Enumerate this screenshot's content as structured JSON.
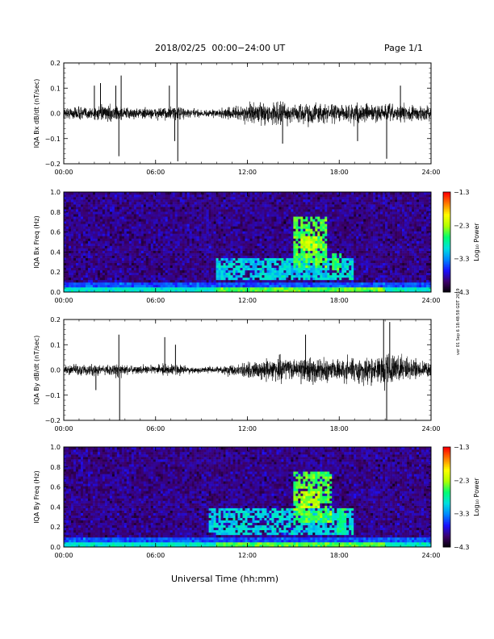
{
  "header": {
    "title": "2018/02/25  00:00−24:00 UT",
    "page": "Page 1/1"
  },
  "side_note": "ver 01 Sep 6 18:48:58 GDT 2019",
  "xlabel": "Universal Time (hh:mm)",
  "colors": {
    "trace": "#000000",
    "colormap": [
      "#000000",
      "#3c0068",
      "#1a10ff",
      "#0088ff",
      "#00e0e0",
      "#00ff70",
      "#b0ff00",
      "#ffff00",
      "#ff8000",
      "#ff0000"
    ]
  },
  "chart_data": [
    {
      "type": "line",
      "ylabel": "IQA Bx dB/dt (nT/sec)",
      "xlim": [
        0,
        24
      ],
      "ylim": [
        -0.2,
        0.2
      ],
      "xticks": [
        "00:00",
        "06:00",
        "12:00",
        "18:00",
        "24:00"
      ],
      "yticks": [
        "−0.2",
        "−0.1",
        "0.0",
        "0.1",
        "0.2"
      ],
      "envelope": {
        "hours": [
          0,
          0.5,
          1,
          1.5,
          2,
          2.5,
          3,
          3.5,
          4,
          4.5,
          5,
          5.5,
          6,
          6.5,
          7,
          7.5,
          8,
          8.5,
          9,
          9.5,
          10,
          10.5,
          11,
          11.5,
          12,
          12.5,
          13,
          13.5,
          14,
          14.5,
          15,
          15.5,
          16,
          16.5,
          17,
          17.5,
          18,
          18.5,
          19,
          19.5,
          20,
          20.5,
          21,
          21.5,
          22,
          22.5,
          23,
          23.5,
          24
        ],
        "amplitude": [
          0.03,
          0.035,
          0.04,
          0.035,
          0.04,
          0.04,
          0.045,
          0.04,
          0.035,
          0.03,
          0.03,
          0.03,
          0.03,
          0.035,
          0.035,
          0.04,
          0.03,
          0.025,
          0.02,
          0.02,
          0.025,
          0.03,
          0.035,
          0.04,
          0.05,
          0.055,
          0.06,
          0.06,
          0.065,
          0.06,
          0.055,
          0.055,
          0.06,
          0.06,
          0.055,
          0.05,
          0.05,
          0.05,
          0.055,
          0.055,
          0.05,
          0.05,
          0.055,
          0.05,
          0.05,
          0.045,
          0.045,
          0.04,
          0.04
        ]
      },
      "spikes": [
        {
          "hour": 2.0,
          "value": 0.11
        },
        {
          "hour": 2.4,
          "value": 0.12
        },
        {
          "hour": 3.4,
          "value": 0.11
        },
        {
          "hour": 3.75,
          "value": 0.15
        },
        {
          "hour": 3.6,
          "value": -0.17
        },
        {
          "hour": 6.9,
          "value": 0.11
        },
        {
          "hour": 7.25,
          "value": -0.11
        },
        {
          "hour": 7.4,
          "value": 0.2
        },
        {
          "hour": 7.45,
          "value": -0.19
        },
        {
          "hour": 14.3,
          "value": -0.12
        },
        {
          "hour": 19.2,
          "value": -0.11
        },
        {
          "hour": 21.1,
          "value": -0.18
        },
        {
          "hour": 22.0,
          "value": 0.11
        }
      ]
    },
    {
      "type": "heatmap",
      "ylabel": "IQA Bx Freq (Hz)",
      "xlim": [
        0,
        24
      ],
      "ylim": [
        0,
        1.0
      ],
      "xticks": [
        "00:00",
        "06:00",
        "12:00",
        "18:00",
        "24:00"
      ],
      "yticks": [
        "0.0",
        "0.2",
        "0.4",
        "0.6",
        "0.8",
        "1.0"
      ],
      "colorbar": {
        "label": "Log₁₀ Power",
        "range": [
          -4.3,
          -1.3
        ],
        "ticks": [
          "−1.3",
          "−2.3",
          "−3.3",
          "−4.3"
        ]
      },
      "features": [
        {
          "t0": 15.0,
          "t1": 17.2,
          "f0": 0.25,
          "f1": 0.75,
          "level": -2.5
        },
        {
          "t0": 15.5,
          "t1": 16.5,
          "f0": 0.42,
          "f1": 0.55,
          "level": -2.2
        },
        {
          "t0": 17.5,
          "t1": 18.1,
          "f0": 0.2,
          "f1": 0.4,
          "level": -2.6
        },
        {
          "t0": 10.0,
          "t1": 19.0,
          "f0": 0.12,
          "f1": 0.35,
          "level": -3.0
        }
      ]
    },
    {
      "type": "line",
      "ylabel": "IQA By dB/dt (nT/sec)",
      "xlim": [
        0,
        24
      ],
      "ylim": [
        -0.2,
        0.2
      ],
      "xticks": [
        "00:00",
        "06:00",
        "12:00",
        "18:00",
        "24:00"
      ],
      "yticks": [
        "−0.2",
        "−0.1",
        "0.0",
        "0.1",
        "0.2"
      ],
      "envelope": {
        "hours": [
          0,
          0.5,
          1,
          1.5,
          2,
          2.5,
          3,
          3.5,
          4,
          4.5,
          5,
          5.5,
          6,
          6.5,
          7,
          7.5,
          8,
          8.5,
          9,
          9.5,
          10,
          10.5,
          11,
          11.5,
          12,
          12.5,
          13,
          13.5,
          14,
          14.5,
          15,
          15.5,
          16,
          16.5,
          17,
          17.5,
          18,
          18.5,
          19,
          19.5,
          20,
          20.5,
          21,
          21.5,
          22,
          22.5,
          23,
          23.5,
          24
        ],
        "amplitude": [
          0.025,
          0.03,
          0.03,
          0.035,
          0.035,
          0.03,
          0.035,
          0.04,
          0.03,
          0.03,
          0.025,
          0.025,
          0.025,
          0.03,
          0.03,
          0.03,
          0.02,
          0.02,
          0.018,
          0.018,
          0.02,
          0.025,
          0.03,
          0.035,
          0.045,
          0.05,
          0.055,
          0.06,
          0.07,
          0.065,
          0.07,
          0.065,
          0.07,
          0.07,
          0.065,
          0.06,
          0.06,
          0.065,
          0.07,
          0.07,
          0.075,
          0.08,
          0.1,
          0.09,
          0.07,
          0.06,
          0.055,
          0.05,
          0.045
        ]
      },
      "spikes": [
        {
          "hour": 2.1,
          "value": -0.08
        },
        {
          "hour": 3.6,
          "value": 0.14
        },
        {
          "hour": 3.65,
          "value": -0.2
        },
        {
          "hour": 6.6,
          "value": 0.13
        },
        {
          "hour": 7.3,
          "value": 0.1
        },
        {
          "hour": 15.8,
          "value": 0.14
        },
        {
          "hour": 20.9,
          "value": 0.2
        },
        {
          "hour": 21.1,
          "value": -0.2
        },
        {
          "hour": 21.3,
          "value": 0.19
        }
      ]
    },
    {
      "type": "heatmap",
      "ylabel": "IQA By Freq (Hz)",
      "xlim": [
        0,
        24
      ],
      "ylim": [
        0,
        1.0
      ],
      "xticks": [
        "00:00",
        "06:00",
        "12:00",
        "18:00",
        "24:00"
      ],
      "yticks": [
        "0.0",
        "0.2",
        "0.4",
        "0.6",
        "0.8",
        "1.0"
      ],
      "colorbar": {
        "label": "Log₁₀ Power",
        "range": [
          -4.3,
          -1.3
        ],
        "ticks": [
          "−1.3",
          "−2.3",
          "−3.3",
          "−4.3"
        ]
      },
      "features": [
        {
          "t0": 15.0,
          "t1": 17.5,
          "f0": 0.25,
          "f1": 0.75,
          "level": -2.5
        },
        {
          "t0": 15.5,
          "t1": 16.8,
          "f0": 0.4,
          "f1": 0.55,
          "level": -2.2
        },
        {
          "t0": 17.8,
          "t1": 18.5,
          "f0": 0.15,
          "f1": 0.4,
          "level": -2.7
        },
        {
          "t0": 9.5,
          "t1": 19.0,
          "f0": 0.12,
          "f1": 0.4,
          "level": -3.0
        }
      ]
    }
  ]
}
